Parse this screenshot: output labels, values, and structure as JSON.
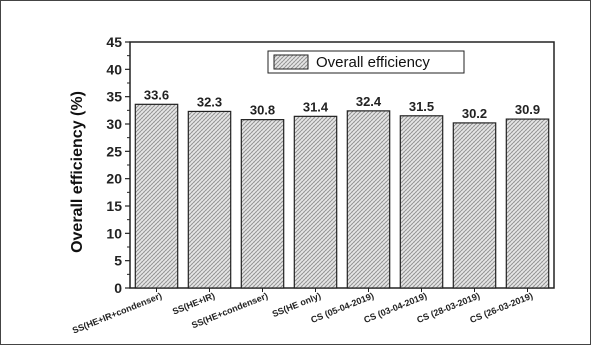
{
  "chart_data": {
    "type": "bar",
    "title": "",
    "xlabel": "",
    "ylabel": "Overall efficiency (%)",
    "ylim": [
      0,
      45
    ],
    "yticks": [
      0,
      5,
      10,
      15,
      20,
      25,
      30,
      35,
      40,
      45
    ],
    "grid": false,
    "legend_position": "top-right",
    "categories": [
      "SS(HE+IR+condenser)",
      "SS(HE+IR)",
      "SS(HE+condenser)",
      "SS(HE only)",
      "CS (05-04-2019)",
      "CS (03-04-2019)",
      "CS (28-03-2019)",
      "CS (26-03-2019)"
    ],
    "series": [
      {
        "name": "Overall efficiency",
        "values": [
          33.6,
          32.3,
          30.8,
          31.4,
          32.4,
          31.5,
          30.2,
          30.9
        ],
        "labels": [
          "33.6",
          "32.3",
          "30.8",
          "31.4",
          "32.4",
          "31.5",
          "30.2",
          "30.9"
        ]
      }
    ],
    "colors": {
      "bar_fill": "#d9d9d9",
      "bar_hatch": "#8a8a8a",
      "axis": "#222222"
    }
  }
}
